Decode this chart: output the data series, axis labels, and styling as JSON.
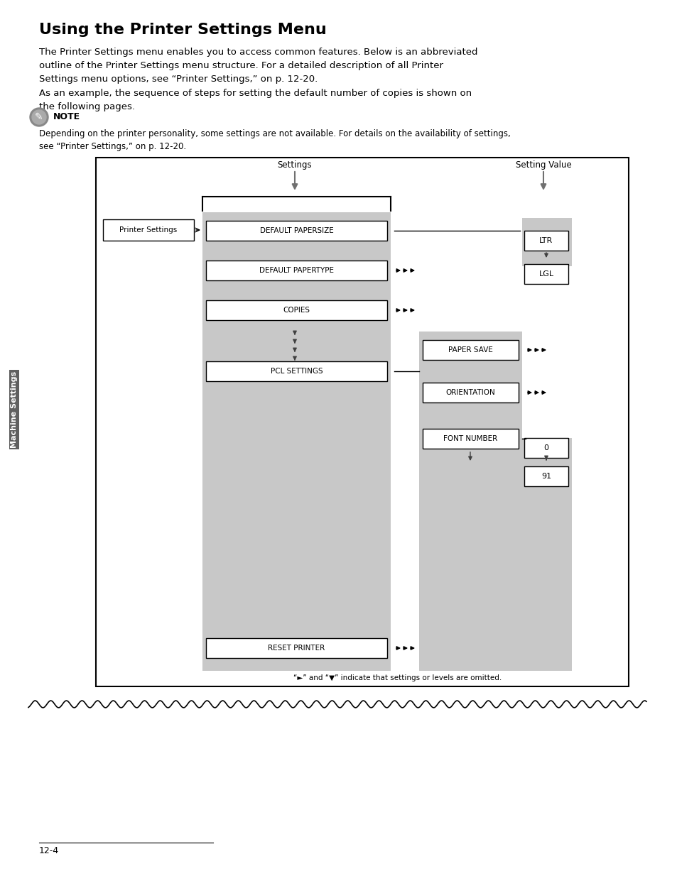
{
  "title": "Using the Printer Settings Menu",
  "bg_color": "#ffffff",
  "body_text_1": "The Printer Settings menu enables you to access common features. Below is an abbreviated\noutline of the Printer Settings menu structure. For a detailed description of all Printer\nSettings menu options, see “Printer Settings,” on p. 12-20.",
  "body_text_2": "As an example, the sequence of steps for setting the default number of copies is shown on\nthe following pages.",
  "note_label": "NOTE",
  "note_text": "Depending on the printer personality, some settings are not available. For details on the availability of settings,\nsee “Printer Settings,” on p. 12-20.",
  "footer_note": "“►” and “▼” indicate that settings or levels are omitted.",
  "page_number": "12-4",
  "side_label": "Machine Settings",
  "diagram": {
    "box_color": "#c8c8c8",
    "settings_label": "Settings",
    "setting_value_label": "Setting Value",
    "printer_settings_box": "Printer Settings",
    "menu_items": [
      "DEFAULT PAPERSIZE",
      "DEFAULT PAPERTYPE",
      "COPIES",
      "PCL SETTINGS",
      "RESET PRINTER"
    ],
    "pcl_sub_items": [
      "PAPER SAVE",
      "ORIENTATION",
      "FONT NUMBER"
    ],
    "value_items_ltr": [
      "LTR",
      "LGL"
    ],
    "value_items_font": [
      "0",
      "91"
    ]
  }
}
